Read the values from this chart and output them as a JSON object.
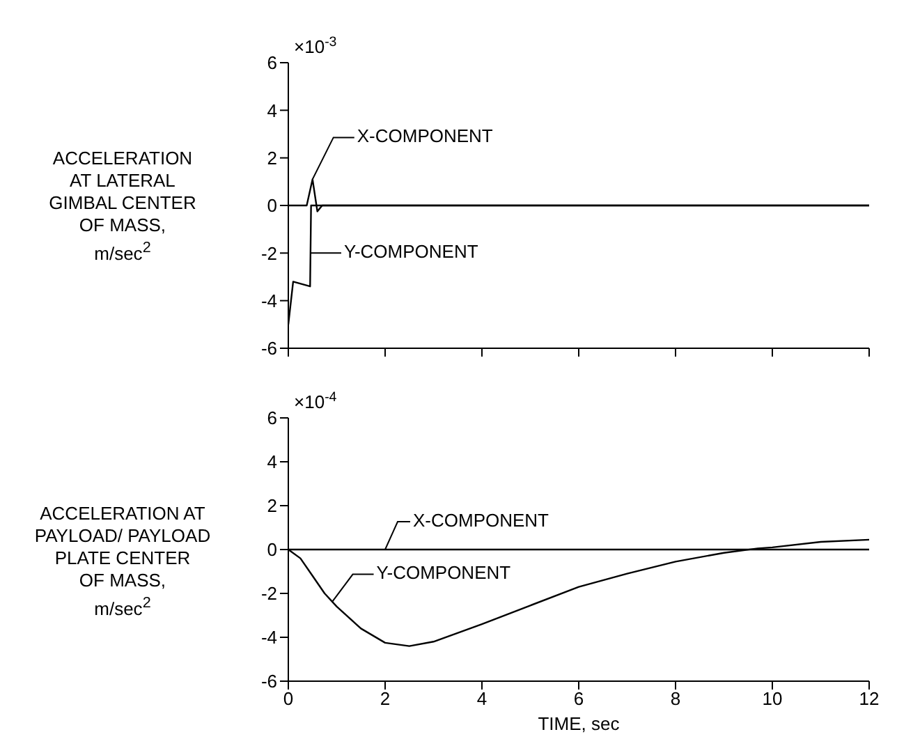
{
  "chart_data": [
    {
      "type": "line",
      "ylabel": "ACCELERATION\nAT LATERAL\nGIMBAL CENTER\nOF MASS,\nm/sec$^{2}$",
      "xlim": [
        0,
        12
      ],
      "xticks": [
        0,
        2,
        4,
        6,
        8,
        10,
        12
      ],
      "ylim": [
        -6,
        6
      ],
      "yticks": [
        -6,
        -4,
        -2,
        0,
        2,
        4,
        6
      ],
      "tick_labels": "y",
      "marker": "none",
      "line_style": "solid",
      "series": [
        {
          "color": "#000000",
          "x": [
            0,
            0.38,
            0.5,
            0.6,
            0.7,
            12
          ],
          "values": [
            0,
            0,
            1.1,
            -0.25,
            0,
            0
          ]
        },
        {
          "color": "#000000",
          "x": [
            0,
            0.1,
            0.45,
            0.47,
            12
          ],
          "values": [
            -5,
            -3.2,
            -3.4,
            0,
            0
          ]
        }
      ],
      "annotations": [
        "×10$^{-3}$",
        {
          "text": "X-COMPONENT",
          "x": 0.5,
          "y": 1.1
        },
        {
          "text": "Y-COMPONENT",
          "x": 0.46,
          "y": -2
        }
      ]
    },
    {
      "type": "line",
      "ylabel": "ACCELERATION AT\nPAYLOAD/ PAYLOAD\nPLATE CENTER\nOF MASS,\nm/sec$^{2}$",
      "xlabel": "TIME, sec",
      "xlim": [
        0,
        12
      ],
      "xticks": [
        0,
        2,
        4,
        6,
        8,
        10,
        12
      ],
      "ylim": [
        -6,
        6
      ],
      "yticks": [
        -6,
        -4,
        -2,
        0,
        2,
        4,
        6
      ],
      "marker": "none",
      "line_style": "solid",
      "series": [
        {
          "color": "#000000",
          "x": [
            0,
            12
          ],
          "values": [
            0,
            0
          ]
        },
        {
          "color": "#000000",
          "x": [
            0,
            0.25,
            0.5,
            0.75,
            1,
            1.5,
            2,
            2.5,
            3,
            4,
            5,
            6,
            7,
            8,
            9,
            9.7,
            10,
            11,
            12
          ],
          "values": [
            0,
            -0.4,
            -1.2,
            -2.0,
            -2.6,
            -3.6,
            -4.25,
            -4.4,
            -4.2,
            -3.4,
            -2.55,
            -1.7,
            -1.1,
            -0.55,
            -0.15,
            0.05,
            0.1,
            0.35,
            0.45
          ]
        }
      ],
      "annotations": [
        "×10$^{-4}$",
        {
          "text": "X-COMPONENT",
          "x": 2,
          "y": 0
        },
        {
          "text": "Y-COMPONENT",
          "x": 0.9,
          "y": -2.4
        }
      ]
    }
  ]
}
